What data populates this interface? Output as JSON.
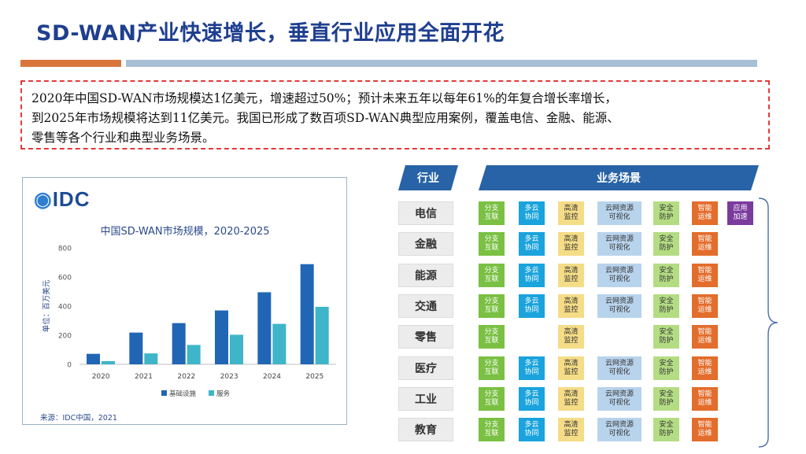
{
  "slide": {
    "title": "SD-WAN产业快速增长，垂直行业应用全面开花",
    "summary_lines": [
      "2020年中国SD-WAN市场规模达1亿美元，增速超过50%；预计未来五年以每年61%的年复合增长率增长，",
      "到2025年市场规模将达到11亿美元。我国已形成了数百项SD-WAN典型应用案例，覆盖电信、金融、能源、",
      "零售等各个行业和典型业务场景。"
    ]
  },
  "chart_card": {
    "logo_text": "IDC",
    "source": "来源：IDC中国，2021"
  },
  "chart_data": {
    "type": "bar",
    "title": "中国SD-WAN市场规模，2020-2025",
    "ylabel": "单位：百万美元",
    "xlabel": "",
    "categories": [
      "2020",
      "2021",
      "2022",
      "2023",
      "2024",
      "2025"
    ],
    "series": [
      {
        "name": "基础设施",
        "values": [
          72,
          218,
          283,
          370,
          495,
          688
        ],
        "color": "#2166b5"
      },
      {
        "name": "服务",
        "values": [
          22,
          75,
          133,
          203,
          278,
          395
        ],
        "color": "#3fb5c9"
      }
    ],
    "ylim": [
      0,
      800
    ],
    "yticks": [
      0,
      200,
      400,
      600,
      800
    ],
    "grid": false,
    "legend": "bottom"
  },
  "matrix": {
    "header_industry": "行业",
    "header_scenario": "业务场景",
    "columns": [
      {
        "key": "branch",
        "label": "分支\n互联",
        "style": "t-green"
      },
      {
        "key": "multicloud",
        "label": "多云\n协同",
        "style": "t-cyan"
      },
      {
        "key": "hd",
        "label": "高清\n监控",
        "style": "t-yellow"
      },
      {
        "key": "visual",
        "label": "云网资源\n可视化",
        "style": "t-blue"
      },
      {
        "key": "security",
        "label": "安全\n防护",
        "style": "t-lime"
      },
      {
        "key": "ops",
        "label": "智能\n运维",
        "style": "t-orange"
      },
      {
        "key": "accel",
        "label": "应用\n加速",
        "style": "t-purple"
      }
    ],
    "rows": [
      {
        "industry": "电信",
        "tags": [
          "branch",
          "multicloud",
          "hd",
          "visual",
          "security",
          "ops",
          "accel"
        ]
      },
      {
        "industry": "金融",
        "tags": [
          "branch",
          "multicloud",
          "hd",
          "visual",
          "security",
          "ops"
        ]
      },
      {
        "industry": "能源",
        "tags": [
          "branch",
          "multicloud",
          "hd",
          "visual",
          "security",
          "ops"
        ]
      },
      {
        "industry": "交通",
        "tags": [
          "branch",
          "multicloud",
          "hd",
          "visual",
          "security",
          "ops"
        ]
      },
      {
        "industry": "零售",
        "tags": [
          "branch",
          "hd",
          "security",
          "ops"
        ]
      },
      {
        "industry": "医疗",
        "tags": [
          "branch",
          "multicloud",
          "hd",
          "visual",
          "security",
          "ops"
        ]
      },
      {
        "industry": "工业",
        "tags": [
          "branch",
          "multicloud",
          "hd",
          "visual",
          "security",
          "ops"
        ]
      },
      {
        "industry": "教育",
        "tags": [
          "branch",
          "multicloud",
          "hd",
          "visual",
          "security",
          "ops"
        ]
      }
    ]
  }
}
